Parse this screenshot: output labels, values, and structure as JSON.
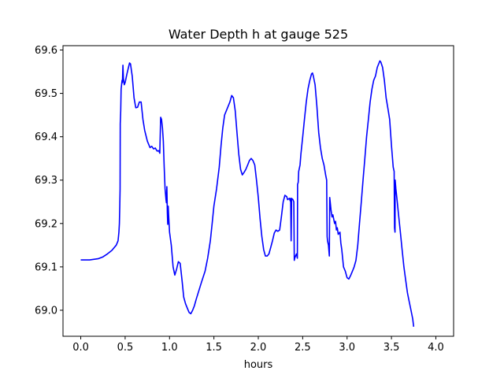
{
  "chart_data": {
    "type": "line",
    "title": "Water Depth h at gauge 525",
    "xlabel": "hours",
    "ylabel": "",
    "xlim": [
      -0.2,
      4.2
    ],
    "ylim": [
      68.94,
      69.61
    ],
    "grid": false,
    "x_ticks": [
      0.0,
      0.5,
      1.0,
      1.5,
      2.0,
      2.5,
      3.0,
      3.5,
      4.0
    ],
    "x_tick_labels": [
      "0.0",
      "0.5",
      "1.0",
      "1.5",
      "2.0",
      "2.5",
      "3.0",
      "3.5",
      "4.0"
    ],
    "y_ticks": [
      69.0,
      69.1,
      69.2,
      69.3,
      69.4,
      69.5,
      69.6
    ],
    "y_tick_labels": [
      "69.0",
      "69.1",
      "69.2",
      "69.3",
      "69.4",
      "69.5",
      "69.6"
    ],
    "series": [
      {
        "color": "#0000ff",
        "points": [
          [
            0.0,
            69.116
          ],
          [
            0.1,
            69.116
          ],
          [
            0.2,
            69.119
          ],
          [
            0.25,
            69.123
          ],
          [
            0.3,
            69.13
          ],
          [
            0.35,
            69.138
          ],
          [
            0.4,
            69.15
          ],
          [
            0.42,
            69.16
          ],
          [
            0.43,
            69.18
          ],
          [
            0.435,
            69.2
          ],
          [
            0.44,
            69.24
          ],
          [
            0.443,
            69.28
          ],
          [
            0.445,
            69.43
          ],
          [
            0.45,
            69.46
          ],
          [
            0.455,
            69.51
          ],
          [
            0.46,
            69.52
          ],
          [
            0.465,
            69.53
          ],
          [
            0.47,
            69.525
          ],
          [
            0.475,
            69.565
          ],
          [
            0.48,
            69.535
          ],
          [
            0.49,
            69.52
          ],
          [
            0.5,
            69.525
          ],
          [
            0.52,
            69.545
          ],
          [
            0.54,
            69.562
          ],
          [
            0.55,
            69.57
          ],
          [
            0.56,
            69.568
          ],
          [
            0.58,
            69.54
          ],
          [
            0.6,
            69.49
          ],
          [
            0.62,
            69.467
          ],
          [
            0.64,
            69.468
          ],
          [
            0.66,
            69.48
          ],
          [
            0.68,
            69.48
          ],
          [
            0.7,
            69.44
          ],
          [
            0.72,
            69.415
          ],
          [
            0.75,
            69.39
          ],
          [
            0.78,
            69.375
          ],
          [
            0.8,
            69.378
          ],
          [
            0.82,
            69.372
          ],
          [
            0.84,
            69.374
          ],
          [
            0.86,
            69.367
          ],
          [
            0.88,
            69.368
          ],
          [
            0.89,
            69.362
          ],
          [
            0.9,
            69.445
          ],
          [
            0.91,
            69.44
          ],
          [
            0.92,
            69.42
          ],
          [
            0.93,
            69.39
          ],
          [
            0.94,
            69.33
          ],
          [
            0.95,
            69.28
          ],
          [
            0.96,
            69.255
          ],
          [
            0.965,
            69.248
          ],
          [
            0.97,
            69.285
          ],
          [
            0.975,
            69.225
          ],
          [
            0.98,
            69.198
          ],
          [
            0.985,
            69.24
          ],
          [
            0.99,
            69.22
          ],
          [
            1.0,
            69.18
          ],
          [
            1.02,
            69.15
          ],
          [
            1.04,
            69.1
          ],
          [
            1.06,
            69.081
          ],
          [
            1.08,
            69.095
          ],
          [
            1.1,
            69.112
          ],
          [
            1.12,
            69.108
          ],
          [
            1.14,
            69.07
          ],
          [
            1.16,
            69.03
          ],
          [
            1.18,
            69.015
          ],
          [
            1.2,
            69.005
          ],
          [
            1.22,
            68.995
          ],
          [
            1.24,
            68.992
          ],
          [
            1.26,
            69.0
          ],
          [
            1.28,
            69.01
          ],
          [
            1.3,
            69.025
          ],
          [
            1.33,
            69.045
          ],
          [
            1.36,
            69.065
          ],
          [
            1.4,
            69.09
          ],
          [
            1.43,
            69.12
          ],
          [
            1.46,
            69.16
          ],
          [
            1.48,
            69.2
          ],
          [
            1.5,
            69.24
          ],
          [
            1.53,
            69.28
          ],
          [
            1.56,
            69.33
          ],
          [
            1.58,
            69.38
          ],
          [
            1.6,
            69.42
          ],
          [
            1.62,
            69.45
          ],
          [
            1.65,
            69.465
          ],
          [
            1.68,
            69.48
          ],
          [
            1.7,
            69.495
          ],
          [
            1.72,
            69.49
          ],
          [
            1.74,
            69.46
          ],
          [
            1.76,
            69.41
          ],
          [
            1.78,
            69.36
          ],
          [
            1.8,
            69.325
          ],
          [
            1.82,
            69.312
          ],
          [
            1.84,
            69.318
          ],
          [
            1.86,
            69.325
          ],
          [
            1.88,
            69.335
          ],
          [
            1.9,
            69.345
          ],
          [
            1.92,
            69.35
          ],
          [
            1.94,
            69.345
          ],
          [
            1.96,
            69.335
          ],
          [
            1.98,
            69.3
          ],
          [
            2.0,
            69.26
          ],
          [
            2.02,
            69.21
          ],
          [
            2.04,
            69.17
          ],
          [
            2.06,
            69.14
          ],
          [
            2.08,
            69.125
          ],
          [
            2.1,
            69.125
          ],
          [
            2.12,
            69.13
          ],
          [
            2.14,
            69.145
          ],
          [
            2.16,
            69.16
          ],
          [
            2.18,
            69.178
          ],
          [
            2.2,
            69.185
          ],
          [
            2.22,
            69.182
          ],
          [
            2.24,
            69.185
          ],
          [
            2.26,
            69.215
          ],
          [
            2.28,
            69.25
          ],
          [
            2.3,
            69.265
          ],
          [
            2.32,
            69.262
          ],
          [
            2.33,
            69.255
          ],
          [
            2.35,
            69.258
          ],
          [
            2.36,
            69.252
          ],
          [
            2.365,
            69.258
          ],
          [
            2.37,
            69.16
          ],
          [
            2.375,
            69.258
          ],
          [
            2.39,
            69.255
          ],
          [
            2.4,
            69.25
          ],
          [
            2.405,
            69.115
          ],
          [
            2.41,
            69.12
          ],
          [
            2.42,
            69.125
          ],
          [
            2.43,
            69.13
          ],
          [
            2.44,
            69.12
          ],
          [
            2.443,
            69.29
          ],
          [
            2.45,
            69.295
          ],
          [
            2.455,
            69.32
          ],
          [
            2.47,
            69.335
          ],
          [
            2.48,
            69.36
          ],
          [
            2.5,
            69.4
          ],
          [
            2.52,
            69.44
          ],
          [
            2.54,
            69.48
          ],
          [
            2.56,
            69.51
          ],
          [
            2.58,
            69.53
          ],
          [
            2.6,
            69.545
          ],
          [
            2.61,
            69.547
          ],
          [
            2.62,
            69.54
          ],
          [
            2.64,
            69.52
          ],
          [
            2.66,
            69.47
          ],
          [
            2.68,
            69.41
          ],
          [
            2.7,
            69.375
          ],
          [
            2.72,
            69.35
          ],
          [
            2.74,
            69.335
          ],
          [
            2.76,
            69.31
          ],
          [
            2.77,
            69.3
          ],
          [
            2.775,
            69.17
          ],
          [
            2.78,
            69.16
          ],
          [
            2.79,
            69.15
          ],
          [
            2.8,
            69.125
          ],
          [
            2.805,
            69.26
          ],
          [
            2.81,
            69.25
          ],
          [
            2.82,
            69.23
          ],
          [
            2.83,
            69.215
          ],
          [
            2.84,
            69.22
          ],
          [
            2.85,
            69.21
          ],
          [
            2.86,
            69.2
          ],
          [
            2.87,
            69.205
          ],
          [
            2.88,
            69.185
          ],
          [
            2.89,
            69.19
          ],
          [
            2.9,
            69.175
          ],
          [
            2.92,
            69.18
          ],
          [
            2.93,
            69.155
          ],
          [
            2.94,
            69.14
          ],
          [
            2.95,
            69.12
          ],
          [
            2.96,
            69.1
          ],
          [
            2.98,
            69.09
          ],
          [
            3.0,
            69.075
          ],
          [
            3.02,
            69.072
          ],
          [
            3.04,
            69.08
          ],
          [
            3.06,
            69.09
          ],
          [
            3.08,
            69.1
          ],
          [
            3.1,
            69.115
          ],
          [
            3.12,
            69.15
          ],
          [
            3.14,
            69.2
          ],
          [
            3.16,
            69.25
          ],
          [
            3.18,
            69.3
          ],
          [
            3.2,
            69.35
          ],
          [
            3.22,
            69.4
          ],
          [
            3.24,
            69.44
          ],
          [
            3.26,
            69.48
          ],
          [
            3.28,
            69.51
          ],
          [
            3.3,
            69.53
          ],
          [
            3.32,
            69.54
          ],
          [
            3.34,
            69.56
          ],
          [
            3.36,
            69.57
          ],
          [
            3.37,
            69.575
          ],
          [
            3.38,
            69.572
          ],
          [
            3.4,
            69.56
          ],
          [
            3.42,
            69.53
          ],
          [
            3.44,
            69.49
          ],
          [
            3.46,
            69.465
          ],
          [
            3.48,
            69.44
          ],
          [
            3.5,
            69.38
          ],
          [
            3.52,
            69.33
          ],
          [
            3.53,
            69.32
          ],
          [
            3.535,
            69.19
          ],
          [
            3.54,
            69.18
          ],
          [
            3.542,
            69.3
          ],
          [
            3.55,
            69.28
          ],
          [
            3.56,
            69.26
          ],
          [
            3.58,
            69.22
          ],
          [
            3.6,
            69.18
          ],
          [
            3.62,
            69.14
          ],
          [
            3.64,
            69.1
          ],
          [
            3.66,
            69.07
          ],
          [
            3.68,
            69.04
          ],
          [
            3.7,
            69.02
          ],
          [
            3.72,
            69.0
          ],
          [
            3.74,
            68.98
          ],
          [
            3.75,
            68.962
          ]
        ]
      }
    ]
  }
}
